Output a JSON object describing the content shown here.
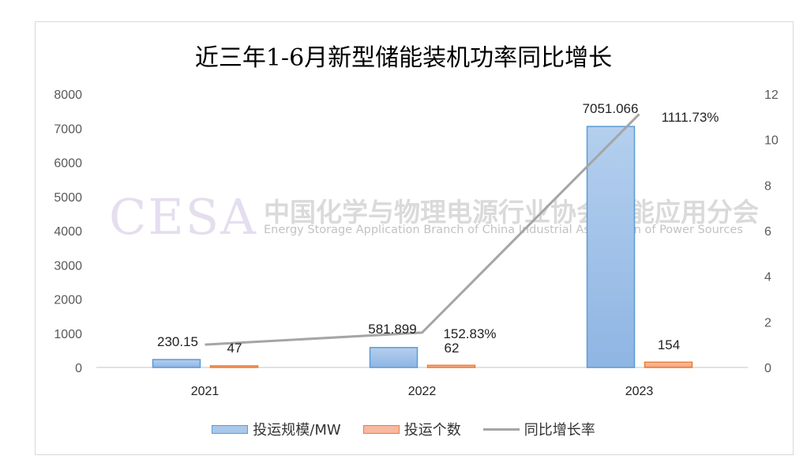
{
  "chart_data": {
    "type": "bar",
    "title": "近三年1-6月新型储能装机功率同比增长",
    "categories": [
      "2021",
      "2022",
      "2023"
    ],
    "series": [
      {
        "name": "投运规模/MW",
        "kind": "bar",
        "axis": "left",
        "values": [
          230.15,
          581.899,
          7051.066
        ],
        "labels": [
          "230.15",
          "581.899",
          "7051.066"
        ],
        "color": "#9dc3e6"
      },
      {
        "name": "投运个数",
        "kind": "bar",
        "axis": "left",
        "values": [
          47,
          62,
          154
        ],
        "labels": [
          "47",
          "62",
          "154"
        ],
        "color": "#f4b183"
      },
      {
        "name": "同比增长率",
        "kind": "line",
        "axis": "right",
        "values": [
          1.0,
          1.5283,
          11.1173
        ],
        "labels": [
          "",
          "152.83%",
          "1111.73%"
        ],
        "color": "#a5a5a5"
      }
    ],
    "ylim": [
      0,
      8000
    ],
    "yticks": [
      "0",
      "1000",
      "2000",
      "3000",
      "4000",
      "5000",
      "6000",
      "7000",
      "8000"
    ],
    "y2lim": [
      0,
      12
    ],
    "y2ticks": [
      "0",
      "2",
      "4",
      "6",
      "8",
      "10",
      "12"
    ],
    "grid": false,
    "legend": "bottom"
  },
  "watermark": {
    "logo": "CESA",
    "cn": "中国化学与物理电源行业协会储能应用分会",
    "en": "Energy Storage Application Branch of China Industrial Association of Power Sources"
  }
}
